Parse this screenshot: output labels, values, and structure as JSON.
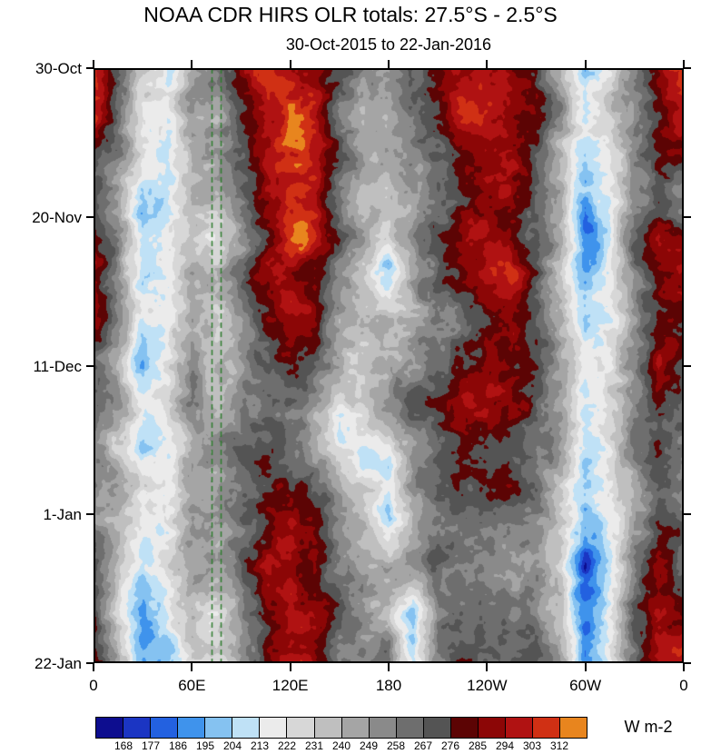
{
  "chart_data": {
    "type": "heatmap",
    "title": "NOAA CDR HIRS OLR totals: 27.5°S - 2.5°S",
    "subtitle": "30-Oct-2015 to 22-Jan-2016",
    "units": "W m-2",
    "x_tick_labels": [
      "0",
      "60E",
      "120E",
      "180",
      "120W",
      "60W",
      "0"
    ],
    "y_tick_labels": [
      "30-Oct",
      "20-Nov",
      "11-Dec",
      "1-Jan",
      "22-Jan"
    ],
    "x_range_deg_east": [
      0,
      360
    ],
    "time_range": [
      "30-Oct-2015",
      "22-Jan-2016"
    ],
    "levels": [
      168,
      177,
      186,
      195,
      204,
      213,
      222,
      231,
      240,
      249,
      258,
      267,
      276,
      285,
      294,
      303,
      312
    ],
    "colors": [
      "#0d0d8f",
      "#1b35c3",
      "#2361e0",
      "#3f93ec",
      "#85c2f1",
      "#bfe1f6",
      "#ebebeb",
      "#d7d7d7",
      "#bfbfbf",
      "#a5a5a5",
      "#8a8a8a",
      "#6e6e6e",
      "#545454",
      "#5c0404",
      "#8c0606",
      "#b01212",
      "#d03014",
      "#e8851e"
    ],
    "reference_lines": {
      "style": "dashed",
      "color": "#2e7d2e",
      "longitudes_deg_east": [
        72,
        77.5
      ]
    },
    "grid_longitudes_deg_east": [
      0,
      15,
      30,
      45,
      60,
      75,
      90,
      105,
      120,
      135,
      150,
      165,
      180,
      195,
      210,
      225,
      240,
      255,
      270,
      285,
      300,
      315,
      330,
      345,
      360
    ],
    "grid_dates": [
      "30-Oct",
      "6-Nov",
      "13-Nov",
      "20-Nov",
      "27-Nov",
      "4-Dec",
      "11-Dec",
      "18-Dec",
      "25-Dec",
      "1-Jan",
      "8-Jan",
      "15-Jan",
      "22-Jan"
    ],
    "values": [
      [
        300,
        268,
        230,
        215,
        250,
        262,
        285,
        295,
        300,
        290,
        270,
        258,
        262,
        270,
        280,
        295,
        300,
        295,
        285,
        250,
        202,
        230,
        262,
        285,
        300
      ],
      [
        295,
        258,
        222,
        210,
        245,
        240,
        270,
        298,
        305,
        295,
        265,
        250,
        255,
        262,
        275,
        300,
        303,
        298,
        280,
        245,
        205,
        225,
        258,
        280,
        295
      ],
      [
        270,
        250,
        215,
        205,
        240,
        235,
        262,
        290,
        300,
        298,
        272,
        248,
        250,
        258,
        270,
        292,
        300,
        295,
        270,
        240,
        200,
        220,
        255,
        275,
        270
      ],
      [
        262,
        245,
        196,
        212,
        238,
        228,
        258,
        295,
        310,
        300,
        268,
        245,
        240,
        250,
        265,
        285,
        298,
        290,
        265,
        238,
        192,
        215,
        258,
        278,
        262
      ],
      [
        295,
        255,
        210,
        218,
        242,
        232,
        255,
        285,
        300,
        292,
        262,
        238,
        200,
        245,
        262,
        278,
        292,
        300,
        272,
        242,
        186,
        212,
        262,
        290,
        295
      ],
      [
        285,
        250,
        215,
        222,
        248,
        238,
        250,
        272,
        288,
        280,
        255,
        242,
        235,
        252,
        268,
        272,
        285,
        295,
        278,
        248,
        205,
        220,
        258,
        282,
        285
      ],
      [
        268,
        245,
        198,
        215,
        252,
        235,
        245,
        262,
        275,
        268,
        250,
        238,
        245,
        258,
        270,
        280,
        290,
        285,
        270,
        245,
        212,
        225,
        262,
        295,
        268
      ],
      [
        262,
        240,
        210,
        220,
        248,
        240,
        252,
        258,
        268,
        255,
        215,
        230,
        248,
        262,
        272,
        285,
        282,
        278,
        265,
        240,
        208,
        222,
        255,
        272,
        262
      ],
      [
        258,
        242,
        215,
        225,
        252,
        245,
        258,
        265,
        272,
        262,
        240,
        218,
        205,
        252,
        268,
        278,
        275,
        270,
        262,
        238,
        202,
        218,
        250,
        268,
        258
      ],
      [
        252,
        238,
        212,
        222,
        248,
        242,
        262,
        278,
        290,
        285,
        262,
        235,
        196,
        245,
        262,
        272,
        270,
        265,
        258,
        235,
        198,
        215,
        248,
        275,
        252
      ],
      [
        275,
        235,
        205,
        218,
        242,
        238,
        258,
        285,
        298,
        290,
        268,
        248,
        238,
        252,
        265,
        268,
        262,
        258,
        252,
        232,
        178,
        212,
        252,
        288,
        275
      ],
      [
        285,
        230,
        192,
        210,
        238,
        232,
        252,
        278,
        292,
        282,
        262,
        252,
        245,
        198,
        258,
        262,
        258,
        252,
        258,
        238,
        188,
        215,
        258,
        290,
        285
      ],
      [
        295,
        245,
        200,
        205,
        232,
        228,
        248,
        272,
        300,
        295,
        272,
        258,
        250,
        212,
        262,
        268,
        265,
        262,
        272,
        250,
        195,
        220,
        262,
        292,
        295
      ]
    ]
  }
}
